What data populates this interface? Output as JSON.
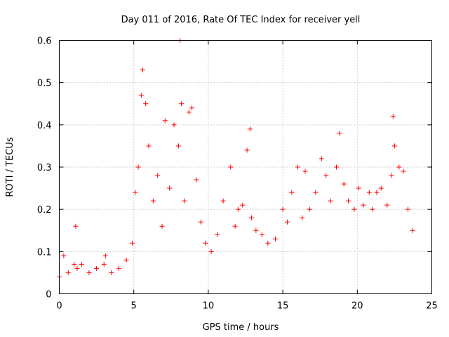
{
  "chart_data": {
    "type": "scatter",
    "title": "Day 011 of 2016, Rate Of TEC Index for receiver yell",
    "xlabel": "GPS time / hours",
    "ylabel": "ROTI / TECUs",
    "xlim": [
      0,
      25
    ],
    "ylim": [
      0,
      0.6
    ],
    "xticks": [
      0,
      5,
      10,
      15,
      20,
      25
    ],
    "xtick_labels": [
      "0",
      "5",
      "10",
      "15",
      "20",
      "25"
    ],
    "yticks": [
      0,
      0.1,
      0.2,
      0.3,
      0.4,
      0.5,
      0.6
    ],
    "ytick_labels": [
      "0",
      "0.1",
      "0.2",
      "0.3",
      "0.4",
      "0.5",
      "0.6"
    ],
    "grid": true,
    "marker": "+",
    "color": "#ff0000",
    "series": [
      {
        "name": "ROTI",
        "x": [
          0.0,
          0.3,
          0.6,
          1.0,
          1.1,
          1.2,
          1.5,
          2.0,
          2.5,
          3.0,
          3.1,
          3.5,
          4.0,
          4.5,
          4.9,
          5.1,
          5.3,
          5.5,
          5.6,
          5.8,
          6.0,
          6.3,
          6.6,
          6.9,
          7.1,
          7.4,
          7.7,
          8.0,
          8.1,
          8.2,
          8.4,
          8.7,
          8.9,
          9.2,
          9.5,
          9.8,
          10.2,
          10.6,
          11.0,
          11.5,
          11.8,
          12.0,
          12.3,
          12.6,
          12.8,
          12.9,
          13.2,
          13.6,
          14.0,
          14.5,
          15.0,
          15.3,
          15.6,
          16.0,
          16.3,
          16.5,
          16.8,
          17.2,
          17.6,
          17.9,
          18.2,
          18.6,
          18.8,
          19.1,
          19.4,
          19.8,
          20.1,
          20.4,
          20.8,
          21.0,
          21.3,
          21.6,
          22.0,
          22.3,
          22.4,
          22.5,
          22.8,
          23.1,
          23.4,
          23.7
        ],
        "y": [
          0.04,
          0.09,
          0.05,
          0.07,
          0.16,
          0.06,
          0.07,
          0.05,
          0.06,
          0.07,
          0.09,
          0.05,
          0.06,
          0.08,
          0.12,
          0.24,
          0.3,
          0.47,
          0.53,
          0.45,
          0.35,
          0.22,
          0.28,
          0.16,
          0.41,
          0.25,
          0.4,
          0.35,
          0.6,
          0.45,
          0.22,
          0.43,
          0.44,
          0.27,
          0.17,
          0.12,
          0.1,
          0.14,
          0.22,
          0.3,
          0.16,
          0.2,
          0.21,
          0.34,
          0.39,
          0.18,
          0.15,
          0.14,
          0.12,
          0.13,
          0.2,
          0.17,
          0.24,
          0.3,
          0.18,
          0.29,
          0.2,
          0.24,
          0.32,
          0.28,
          0.22,
          0.3,
          0.38,
          0.26,
          0.22,
          0.2,
          0.25,
          0.21,
          0.24,
          0.2,
          0.24,
          0.25,
          0.21,
          0.28,
          0.42,
          0.35,
          0.3,
          0.29,
          0.2,
          0.15
        ]
      }
    ]
  }
}
